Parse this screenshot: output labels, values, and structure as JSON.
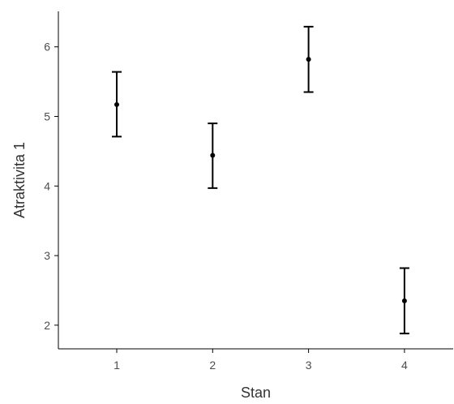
{
  "chart_data": {
    "type": "errorbar",
    "title": "",
    "xlabel": "Stan",
    "ylabel": "Atraktivita 1",
    "categories": [
      "1",
      "2",
      "3",
      "4"
    ],
    "points": [
      {
        "x": "1",
        "mean": 5.17,
        "lower": 4.71,
        "upper": 5.64
      },
      {
        "x": "2",
        "mean": 4.44,
        "lower": 3.97,
        "upper": 4.9
      },
      {
        "x": "3",
        "mean": 5.82,
        "lower": 5.35,
        "upper": 6.29
      },
      {
        "x": "4",
        "mean": 2.35,
        "lower": 1.88,
        "upper": 2.82
      }
    ],
    "yticks": [
      2,
      3,
      4,
      5,
      6
    ],
    "ylim": [
      1.66,
      6.51
    ],
    "grid": false,
    "colors": {
      "marks": "#000000",
      "axis": "#000000",
      "text": "#4d4d4d"
    }
  }
}
